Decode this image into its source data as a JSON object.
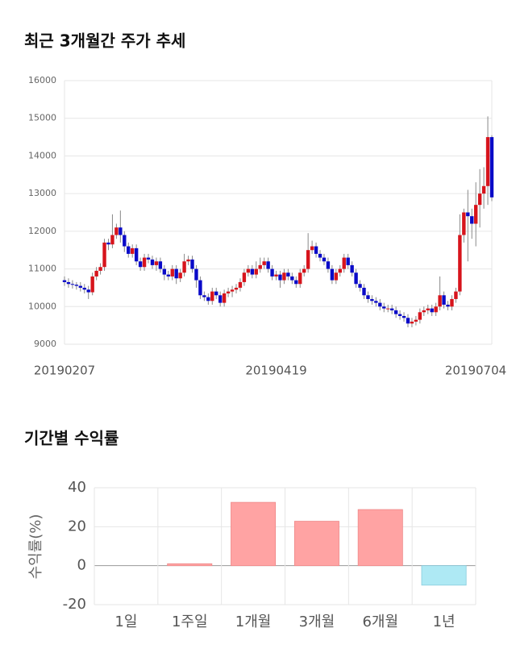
{
  "chart_data": [
    {
      "type": "candlestick",
      "title": "최근 3개월간 주가 추세",
      "categories": [
        "20190207",
        null,
        null,
        null,
        null,
        null,
        null,
        null,
        null,
        null,
        null,
        null,
        null,
        null,
        null,
        null,
        null,
        null,
        null,
        null,
        null,
        null,
        null,
        null,
        null,
        null,
        null,
        null,
        null,
        null,
        null,
        null,
        null,
        null,
        null,
        null,
        null,
        null,
        null,
        null,
        null,
        null,
        null,
        null,
        null,
        null,
        null,
        null,
        null,
        null,
        null,
        null,
        null,
        "20190419",
        null,
        null,
        null,
        null,
        null,
        null,
        null,
        null,
        null,
        null,
        null,
        null,
        null,
        null,
        null,
        null,
        null,
        null,
        null,
        null,
        null,
        null,
        null,
        null,
        null,
        null,
        null,
        null,
        null,
        null,
        null,
        null,
        null,
        null,
        null,
        null,
        null,
        null,
        null,
        null,
        null,
        null,
        null,
        null,
        null,
        null,
        null,
        null,
        null,
        null,
        null,
        null,
        null,
        "20190704"
      ],
      "open": [
        10700,
        10650,
        10600,
        10580,
        10550,
        10500,
        10450,
        10380,
        10800,
        10950,
        11050,
        11700,
        11650,
        11900,
        12100,
        11900,
        11600,
        11400,
        11550,
        11200,
        11050,
        11300,
        11250,
        11100,
        11200,
        11000,
        10850,
        10800,
        11000,
        10750,
        10900,
        11200,
        11250,
        11000,
        10700,
        10300,
        10250,
        10150,
        10400,
        10300,
        10100,
        10350,
        10400,
        10450,
        10500,
        10650,
        10900,
        11000,
        10850,
        11000,
        11100,
        11200,
        11000,
        10800,
        10850,
        10700,
        10900,
        10800,
        10700,
        10600,
        10900,
        11000,
        11500,
        11600,
        11400,
        11300,
        11200,
        11000,
        10700,
        10900,
        11000,
        11300,
        11100,
        10900,
        10600,
        10500,
        10300,
        10200,
        10150,
        10100,
        10000,
        9950,
        9950,
        9900,
        9800,
        9750,
        9700,
        9550,
        9600,
        9650,
        9850,
        9900,
        9950,
        9850,
        10000,
        10300,
        10050,
        10000,
        10200,
        10400,
        11900,
        12500,
        12400,
        12200,
        12700,
        13000,
        13200,
        14500
      ],
      "high": [
        10800,
        10750,
        10700,
        10650,
        10650,
        10600,
        10550,
        10900,
        11050,
        11150,
        11800,
        11800,
        12450,
        12200,
        12550,
        12000,
        11700,
        11650,
        11650,
        11300,
        11400,
        11400,
        11350,
        11300,
        11300,
        11100,
        10950,
        11100,
        11100,
        11000,
        11400,
        11350,
        11350,
        11100,
        10800,
        10400,
        10350,
        10500,
        10500,
        10400,
        10450,
        10500,
        10550,
        10600,
        10750,
        11000,
        11100,
        11100,
        11200,
        11300,
        11300,
        11300,
        11100,
        10950,
        10950,
        11000,
        11000,
        10900,
        10800,
        11000,
        11100,
        11950,
        11750,
        11700,
        11500,
        11400,
        11300,
        11100,
        11000,
        11100,
        11400,
        11400,
        11200,
        11000,
        10700,
        10600,
        10400,
        10300,
        10250,
        10200,
        10100,
        10050,
        10050,
        10000,
        9900,
        9850,
        9800,
        9700,
        9750,
        9950,
        10000,
        10050,
        10050,
        10100,
        10800,
        10400,
        10150,
        10300,
        10500,
        12450,
        12600,
        13100,
        12600,
        13300,
        13650,
        13700,
        15050,
        14550
      ],
      "low": [
        10550,
        10500,
        10480,
        10450,
        10400,
        10350,
        10200,
        10300,
        10700,
        10850,
        10950,
        11500,
        11550,
        11800,
        11700,
        11450,
        11300,
        11300,
        11100,
        10950,
        10950,
        11150,
        11000,
        10950,
        10900,
        10700,
        10700,
        10700,
        10600,
        10650,
        10800,
        11100,
        10900,
        10500,
        10200,
        10150,
        10050,
        10050,
        10200,
        10000,
        10000,
        10250,
        10250,
        10350,
        10400,
        10550,
        10800,
        10750,
        10750,
        10900,
        11000,
        10900,
        10700,
        10700,
        10500,
        10600,
        10700,
        10600,
        10500,
        10500,
        10800,
        10900,
        11400,
        11300,
        11200,
        11100,
        10900,
        10600,
        10600,
        10800,
        10900,
        11000,
        10800,
        10500,
        10400,
        10200,
        10100,
        10050,
        10000,
        9900,
        9850,
        9850,
        9800,
        9700,
        9650,
        9600,
        9450,
        9450,
        9500,
        9550,
        9750,
        9800,
        9750,
        9750,
        9900,
        9950,
        9900,
        9900,
        10100,
        10300,
        11700,
        11200,
        11800,
        11600,
        12100,
        12600,
        12700,
        12800
      ],
      "close": [
        10650,
        10600,
        10580,
        10550,
        10500,
        10450,
        10380,
        10800,
        10950,
        11050,
        11700,
        11650,
        11900,
        12100,
        11900,
        11600,
        11400,
        11550,
        11200,
        11050,
        11300,
        11250,
        11100,
        11200,
        11000,
        10850,
        10800,
        11000,
        10750,
        10900,
        11200,
        11250,
        11000,
        10700,
        10300,
        10250,
        10150,
        10400,
        10300,
        10100,
        10350,
        10400,
        10450,
        10500,
        10650,
        10900,
        11000,
        10850,
        11000,
        11100,
        11200,
        11000,
        10800,
        10850,
        10700,
        10900,
        10800,
        10700,
        10600,
        10900,
        11000,
        11500,
        11600,
        11400,
        11300,
        11200,
        11000,
        10700,
        10900,
        11000,
        11300,
        11100,
        10900,
        10600,
        10500,
        10300,
        10200,
        10150,
        10100,
        10000,
        9950,
        9950,
        9900,
        9800,
        9750,
        9700,
        9550,
        9600,
        9650,
        9850,
        9900,
        9950,
        9850,
        10000,
        10300,
        10050,
        10000,
        10200,
        10400,
        11900,
        12500,
        12400,
        12200,
        12700,
        13000,
        13200,
        14500,
        12900
      ],
      "up_color": "#d7141c",
      "down_color": "#0a0ac8",
      "ylim": [
        9000,
        16000
      ],
      "yticks": [
        9000,
        10000,
        11000,
        12000,
        13000,
        14000,
        15000,
        16000
      ],
      "grid": true
    },
    {
      "type": "bar",
      "title": "기간별 수익률",
      "ylabel": "수익률(%)",
      "categories": [
        "1일",
        "1주일",
        "1개월",
        "3개월",
        "6개월",
        "1년"
      ],
      "values": [
        0,
        1,
        32.5,
        22.8,
        28.8,
        -10
      ],
      "positive_color": "#ffa3a3",
      "negative_color": "#aee9f4",
      "ylim": [
        -20,
        40
      ],
      "yticks": [
        -20,
        0,
        20,
        40
      ],
      "grid": true
    }
  ]
}
